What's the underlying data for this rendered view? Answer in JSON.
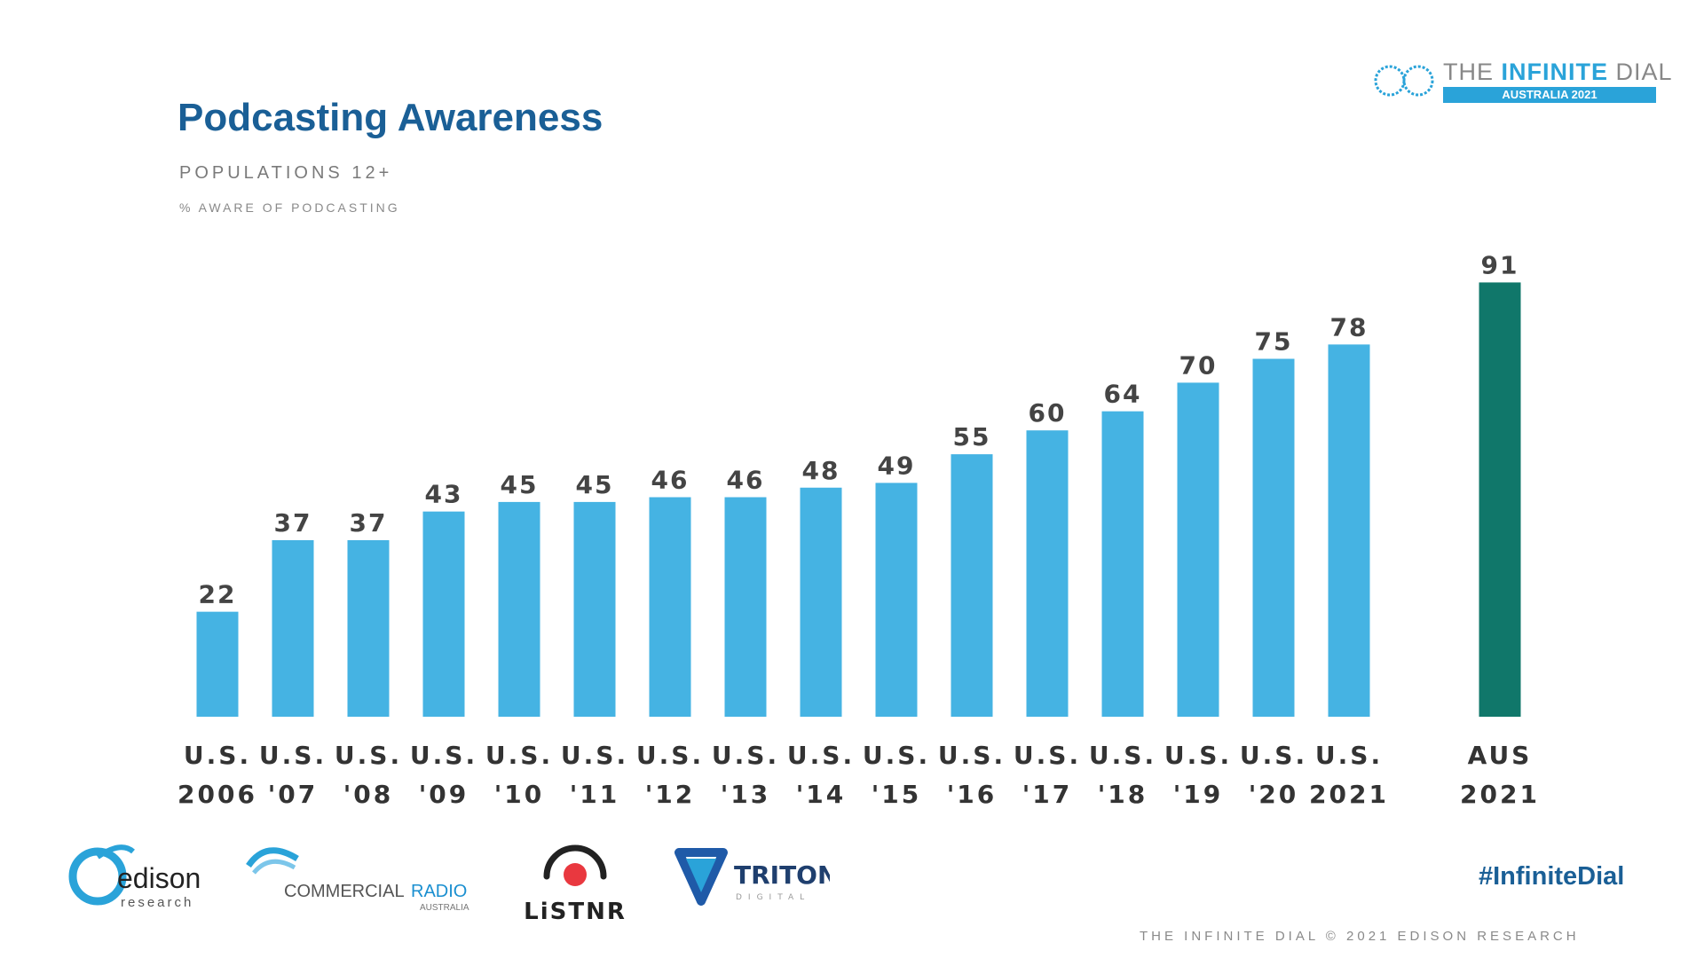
{
  "header": {
    "title": "Podcasting Awareness",
    "subtitle": "POPULATIONS 12+",
    "metric_label": "% AWARE OF PODCASTING"
  },
  "brand": {
    "name_prefix": "THE ",
    "name_bold": "INFINITE",
    "name_suffix": " DIAL",
    "edition": "AUSTRALIA 2021"
  },
  "chart_data": {
    "type": "bar",
    "title": "Podcasting Awareness",
    "subtitle": "POPULATIONS 12+",
    "ylabel": "% AWARE OF PODCASTING",
    "xlabel": "",
    "ylim": [
      0,
      100
    ],
    "grid": false,
    "categories": [
      [
        "U.S.",
        "2006"
      ],
      [
        "U.S.",
        "'07"
      ],
      [
        "U.S.",
        "'08"
      ],
      [
        "U.S.",
        "'09"
      ],
      [
        "U.S.",
        "'10"
      ],
      [
        "U.S.",
        "'11"
      ],
      [
        "U.S.",
        "'12"
      ],
      [
        "U.S.",
        "'13"
      ],
      [
        "U.S.",
        "'14"
      ],
      [
        "U.S.",
        "'15"
      ],
      [
        "U.S.",
        "'16"
      ],
      [
        "U.S.",
        "'17"
      ],
      [
        "U.S.",
        "'18"
      ],
      [
        "U.S.",
        "'19"
      ],
      [
        "U.S.",
        "'20"
      ],
      [
        "U.S.",
        "2021"
      ],
      [
        "AUS",
        "2021"
      ]
    ],
    "values": [
      22,
      37,
      37,
      43,
      45,
      45,
      46,
      46,
      48,
      49,
      55,
      60,
      64,
      70,
      75,
      78,
      91
    ],
    "colors": {
      "us": "#45b3e3",
      "aus": "#10776a"
    }
  },
  "logos": {
    "edison": "edison",
    "edison_sub": "research",
    "commercial_radio_a": "COMMERCIAL",
    "commercial_radio_b": "RADIO",
    "commercial_radio_sub": "AUSTRALIA",
    "listnr": "LiSTNR",
    "triton": "TRITON",
    "triton_sub": "DIGITAL"
  },
  "hashtag": "#InfiniteDial",
  "footer": "THE INFINITE DIAL  © 2021 EDISON RESEARCH"
}
